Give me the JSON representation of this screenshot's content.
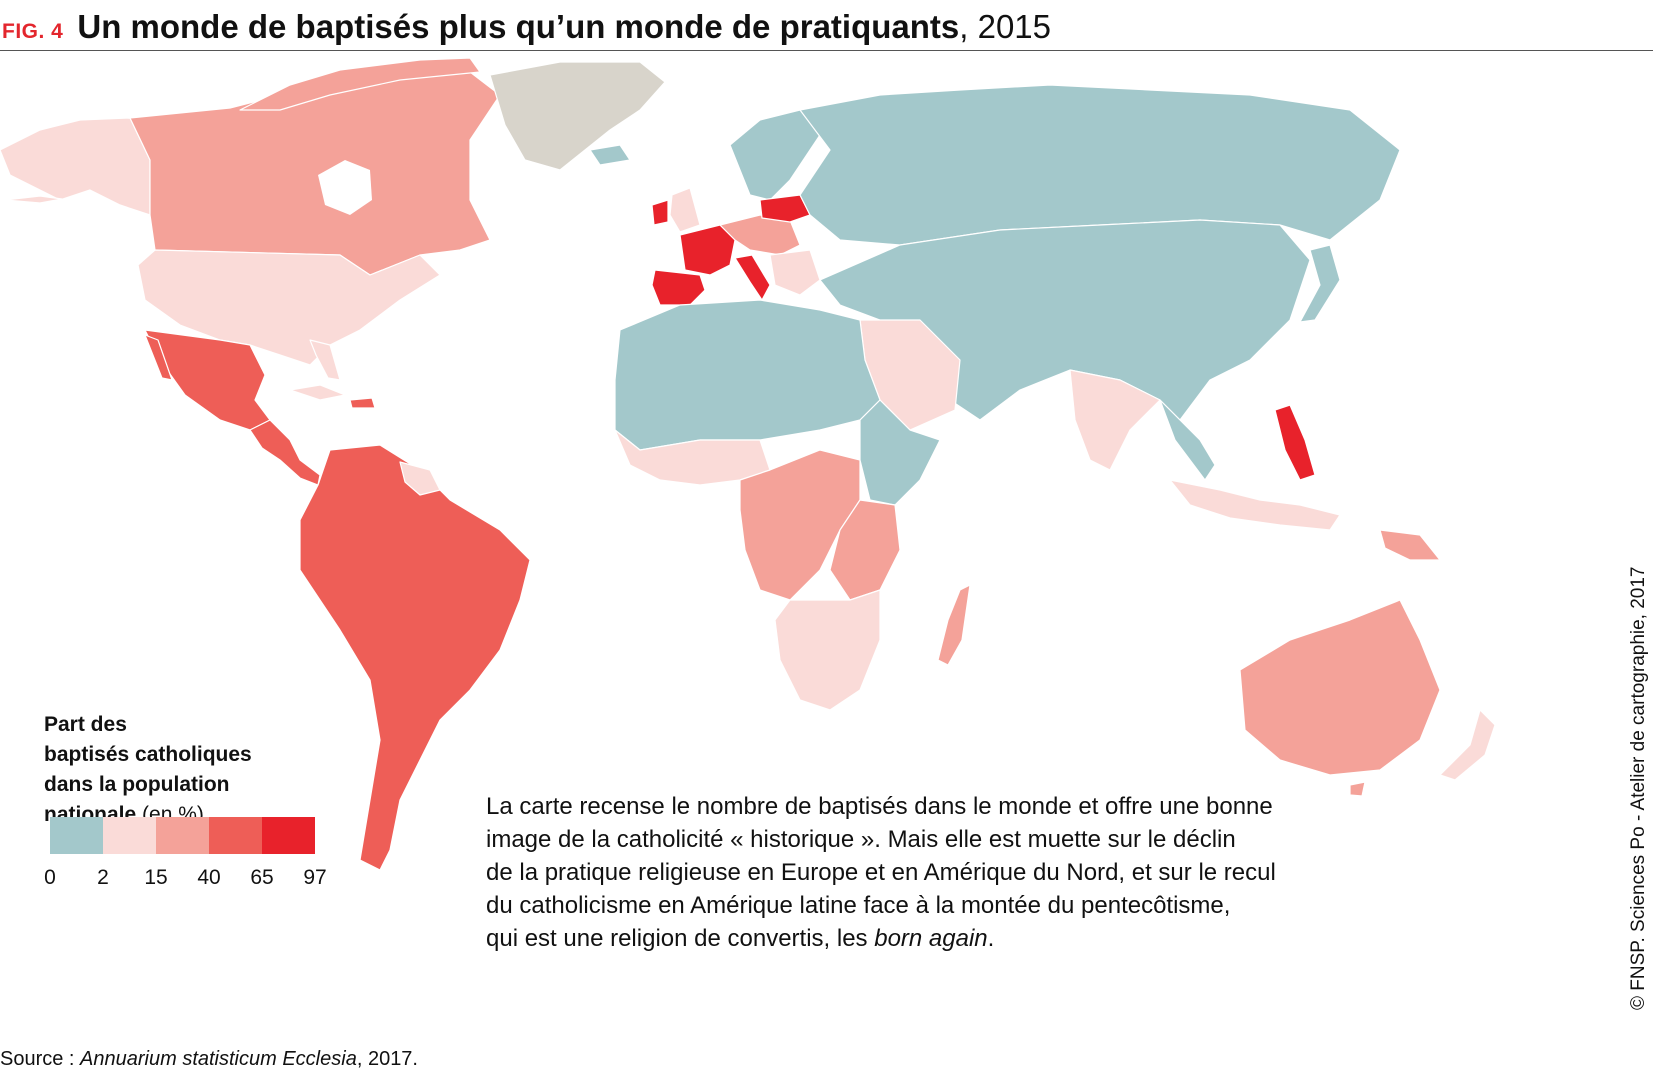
{
  "header": {
    "fig_label": "FIG. 4",
    "title": "Un monde de baptisés plus qu’un monde de pratiquants",
    "year": ", 2015"
  },
  "map": {
    "legend": {
      "title_line1": "Part des",
      "title_line2": "baptisés catholiques",
      "title_line3": "dans la population",
      "title_line4_bold": "nationale",
      "title_line4_unit": "(en %)",
      "classes": [
        {
          "from": "0",
          "to": "2",
          "color": "#a3c8cb"
        },
        {
          "from": "2",
          "to": "15",
          "color": "#fadbd8"
        },
        {
          "from": "15",
          "to": "40",
          "color": "#f4a299"
        },
        {
          "from": "40",
          "to": "65",
          "color": "#ee5e57"
        },
        {
          "from": "65",
          "to": "97",
          "color": "#e8222b"
        }
      ],
      "ticks": [
        "0",
        "2",
        "15",
        "40",
        "65",
        "97"
      ],
      "no_data_color": "#d8d4cb"
    }
  },
  "body_text": {
    "line1": "La carte recense le nombre de baptisés dans le monde et offre une bonne",
    "line2": "image de la catholicité « historique ». Mais elle est muette sur le déclin",
    "line3": "de la pratique religieuse en Europe et en Amérique du Nord, et sur le recul",
    "line4": "du catholicisme en Amérique latine face à la montée du pentecôtisme,",
    "line5_start": "qui est une religion de convertis, les ",
    "line5_italic": "born again",
    "line5_end": "."
  },
  "source": {
    "prefix": "Source : ",
    "italic": "Annuarium statisticum Ecclesia",
    "suffix": ", 2017."
  },
  "credit": "© FNSP. Sciences Po - Atelier de cartographie, 2017"
}
